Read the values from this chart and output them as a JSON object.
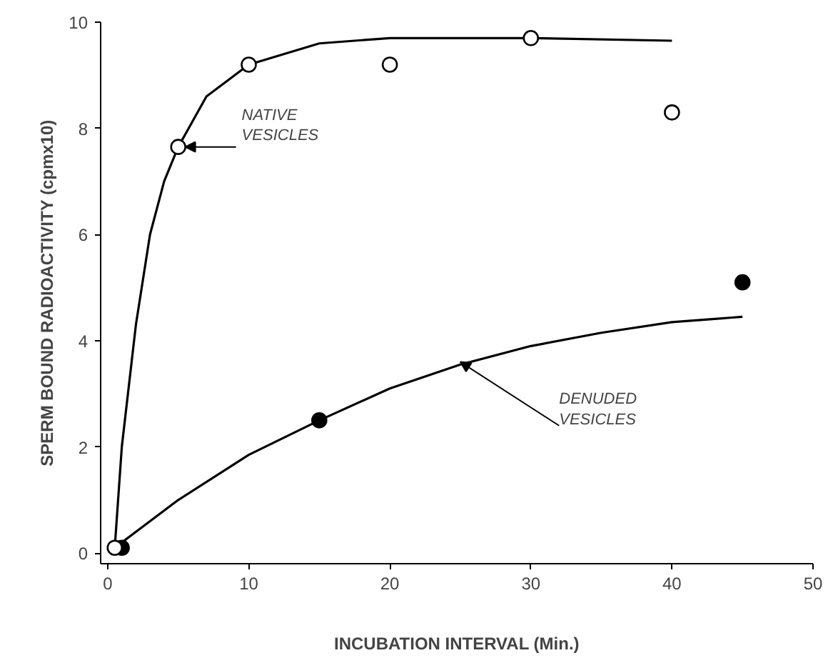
{
  "chart_data": {
    "type": "scatter",
    "xlabel": "INCUBATION INTERVAL (Min.)",
    "ylabel": "SPERM BOUND RADIOACTIVITY (cpmx10)",
    "xlim": [
      -0.5,
      50
    ],
    "ylim": [
      -0.2,
      10
    ],
    "xticks": [
      0,
      10,
      20,
      30,
      40,
      50
    ],
    "yticks": [
      0,
      2,
      4,
      6,
      8,
      10
    ],
    "grid": false,
    "series": [
      {
        "type": "line",
        "color": "#000000",
        "marker": "none",
        "line_style": "solid",
        "x": [
          0.5,
          1,
          2,
          3,
          4,
          5,
          7,
          10,
          15,
          20,
          30,
          40
        ],
        "values": [
          0.1,
          2.0,
          4.3,
          6.0,
          7.0,
          7.65,
          8.6,
          9.2,
          9.6,
          9.7,
          9.7,
          9.65
        ]
      },
      {
        "color": "#ffffff",
        "marker": "circle",
        "x": [
          0.5,
          5,
          10,
          20,
          30,
          40
        ],
        "values": [
          0.1,
          7.65,
          9.2,
          9.2,
          9.7,
          8.3
        ]
      },
      {
        "type": "line",
        "color": "#000000",
        "marker": "none",
        "line_style": "solid",
        "x": [
          0.5,
          5,
          10,
          15,
          20,
          25,
          30,
          35,
          40,
          45
        ],
        "values": [
          0.1,
          1.0,
          1.85,
          2.5,
          3.1,
          3.55,
          3.9,
          4.15,
          4.35,
          4.45
        ]
      },
      {
        "color": "#000000",
        "marker": "circle",
        "x": [
          1,
          15,
          45
        ],
        "values": [
          0.1,
          2.5,
          5.1
        ]
      }
    ],
    "annotations": [
      {
        "text": "NATIVE\nVESICLES",
        "x": 5.5,
        "y": 7.65
      },
      {
        "text": "DENUDED\nVESICLES",
        "x": 25,
        "y": 3.6
      }
    ]
  }
}
